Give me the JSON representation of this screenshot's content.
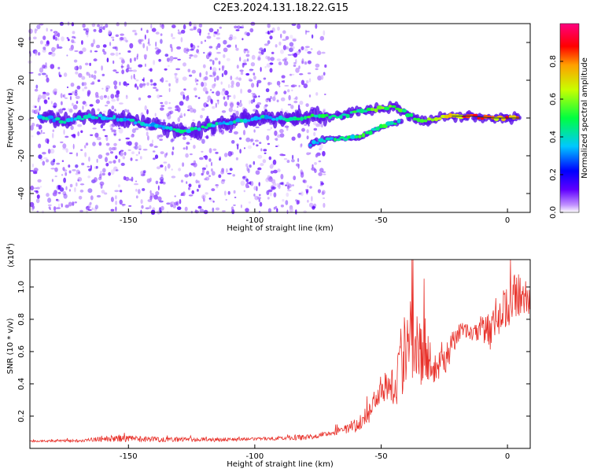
{
  "title": "C2E3.2024.131.18.22.G15",
  "colors": {
    "snr_line": "#e8322b",
    "track_fill": "#5a10e8",
    "background": "#ffffff",
    "axis": "#000000"
  },
  "chart_data": [
    {
      "type": "heatmap",
      "xlabel": "Height of straight line (km)",
      "ylabel": "Frequency (Hz)",
      "xlim": [
        -189,
        9
      ],
      "ylim": [
        -50,
        50
      ],
      "x_ticks": [
        -150,
        -100,
        -50,
        0
      ],
      "y_ticks": [
        -40,
        -20,
        0,
        20,
        40
      ],
      "grid": false,
      "colorbar": {
        "label": "Normalized spectral amplitude",
        "range": [
          0,
          1
        ],
        "ticks": [
          0.0,
          0.2,
          0.4,
          0.6,
          0.8
        ],
        "colormap": [
          "#ffffff",
          "#6000ff",
          "#0000ff",
          "#00ffff",
          "#00ff00",
          "#ffff00",
          "#ff0000",
          "#ff00a0"
        ]
      },
      "track_main": [
        [
          -185,
          1
        ],
        [
          -175,
          -2
        ],
        [
          -165,
          1
        ],
        [
          -155,
          0
        ],
        [
          -145,
          -3
        ],
        [
          -138,
          -4
        ],
        [
          -130,
          -7
        ],
        [
          -122,
          -6
        ],
        [
          -115,
          -3
        ],
        [
          -108,
          -2
        ],
        [
          -100,
          0
        ],
        [
          -92,
          0
        ],
        [
          -85,
          -1
        ],
        [
          -78,
          1
        ],
        [
          -72,
          1
        ],
        [
          -65,
          1
        ],
        [
          -60,
          3
        ],
        [
          -55,
          4
        ],
        [
          -50,
          5
        ],
        [
          -45,
          6
        ],
        [
          -42,
          4
        ],
        [
          -38,
          1
        ],
        [
          -33,
          -2
        ],
        [
          -28,
          0
        ],
        [
          -22,
          1
        ],
        [
          -15,
          1
        ],
        [
          -5,
          0
        ],
        [
          5,
          0
        ]
      ],
      "track_secondary": [
        [
          -78,
          -14
        ],
        [
          -74,
          -12
        ],
        [
          -70,
          -11
        ],
        [
          -64,
          -11
        ],
        [
          -58,
          -10
        ],
        [
          -55,
          -8
        ],
        [
          -50,
          -5
        ],
        [
          -46,
          -3
        ],
        [
          -42,
          -2
        ]
      ],
      "track_main_amplitude": [
        0.4,
        0.4,
        0.4,
        0.4,
        0.4,
        0.4,
        0.45,
        0.45,
        0.4,
        0.4,
        0.4,
        0.4,
        0.45,
        0.5,
        0.5,
        0.5,
        0.5,
        0.55,
        0.6,
        0.6,
        0.55,
        0.55,
        0.55,
        0.6,
        0.8,
        0.85,
        0.85,
        0.85
      ],
      "track_secondary_amplitude": [
        0.3,
        0.4,
        0.45,
        0.45,
        0.5,
        0.5,
        0.5,
        0.5,
        0.5
      ]
    },
    {
      "type": "line",
      "xlabel": "Height of straight line (km)",
      "ylabel": "SNR (10 * v/v)",
      "y_multiplier_label": "(x10",
      "y_multiplier_exp": "4",
      "y_multiplier_close": ")",
      "xlim": [
        -189,
        9
      ],
      "ylim": [
        0,
        1.17
      ],
      "x_ticks": [
        -150,
        -100,
        -50,
        0
      ],
      "y_ticks": [
        0.2,
        0.4,
        0.6,
        0.8,
        1.0
      ],
      "grid": false,
      "series": [
        {
          "color": "#e8322b",
          "envelope": [
            [
              -189,
              0.04,
              0.05
            ],
            [
              -170,
              0.04,
              0.06
            ],
            [
              -155,
              0.04,
              0.09
            ],
            [
              -140,
              0.04,
              0.08
            ],
            [
              -120,
              0.04,
              0.07
            ],
            [
              -100,
              0.05,
              0.07
            ],
            [
              -80,
              0.05,
              0.09
            ],
            [
              -70,
              0.08,
              0.12
            ],
            [
              -60,
              0.1,
              0.18
            ],
            [
              -55,
              0.15,
              0.3
            ],
            [
              -52,
              0.25,
              0.42
            ],
            [
              -48,
              0.3,
              0.55
            ],
            [
              -45,
              0.25,
              0.6
            ],
            [
              -42,
              0.3,
              0.85
            ],
            [
              -39,
              0.4,
              1.1
            ],
            [
              -36,
              0.45,
              1.15
            ],
            [
              -34,
              0.35,
              0.95
            ],
            [
              -30,
              0.4,
              0.65
            ],
            [
              -25,
              0.45,
              0.65
            ],
            [
              -22,
              0.55,
              0.75
            ],
            [
              -18,
              0.7,
              0.8
            ],
            [
              -14,
              0.65,
              0.78
            ],
            [
              -10,
              0.6,
              0.85
            ],
            [
              -6,
              0.6,
              0.9
            ],
            [
              -3,
              0.7,
              1.0
            ],
            [
              0,
              0.75,
              1.1
            ],
            [
              4,
              0.8,
              1.15
            ],
            [
              9,
              0.78,
              0.95
            ]
          ]
        }
      ]
    }
  ]
}
